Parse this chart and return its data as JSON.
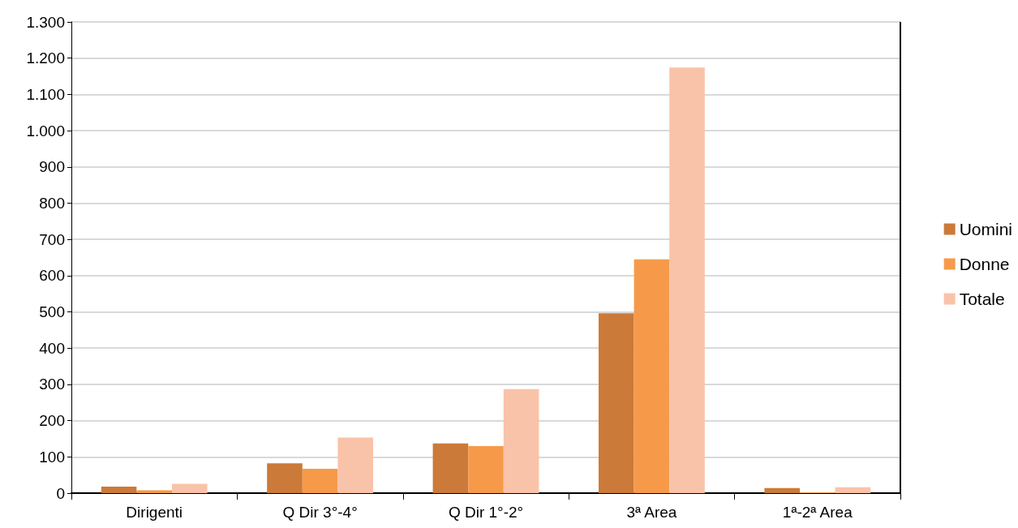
{
  "chart_data": {
    "type": "bar",
    "categories": [
      "Dirigenti",
      "Q Dir 3°-4°",
      "Q Dir 1°-2°",
      "3ª Area",
      "1ª-2ª Area"
    ],
    "series": [
      {
        "name": "Uomini",
        "color": "#cb7a39",
        "values": [
          18,
          82,
          137,
          496,
          14
        ]
      },
      {
        "name": "Donne",
        "color": "#f69a4a",
        "values": [
          8,
          67,
          130,
          645,
          2
        ]
      },
      {
        "name": "Totale",
        "color": "#f9c3a9",
        "values": [
          26,
          153,
          287,
          1174,
          16
        ]
      }
    ],
    "ylim": [
      0,
      1300
    ],
    "yticks": [
      0,
      100,
      200,
      300,
      400,
      500,
      600,
      700,
      800,
      900,
      {
        "value": 1000,
        "label": "1.000"
      },
      {
        "value": 1100,
        "label": "1.100"
      },
      {
        "value": 1200,
        "label": "1.200"
      },
      {
        "value": 1300,
        "label": "1.300"
      }
    ],
    "grid": "y",
    "legend": "right"
  }
}
